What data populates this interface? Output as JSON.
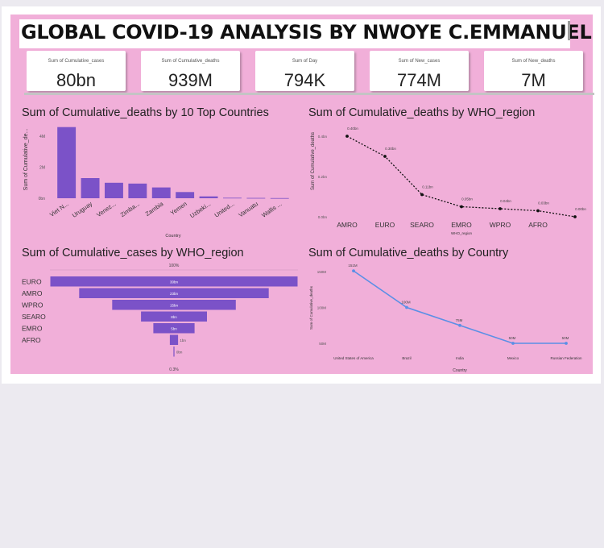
{
  "page": {
    "title": "GLOBAL COVID-19 ANALYSIS BY NWOYE C.EMMANUEL"
  },
  "kpis": [
    {
      "label": "Sum of Cumulative_cases",
      "value": "80bn"
    },
    {
      "label": "Sum of Cumulative_deaths",
      "value": "939M"
    },
    {
      "label": "Sum of Day",
      "value": "794K"
    },
    {
      "label": "Sum of New_cases",
      "value": "774M"
    },
    {
      "label": "Sum of New_deaths",
      "value": "7M"
    }
  ],
  "colors": {
    "canvas": "#f1afd9",
    "bar": "#7b52c8",
    "line_black": "#111111",
    "line_blue": "#5b8fe6"
  },
  "chart_data": [
    {
      "type": "bar",
      "title": "Sum of Cumulative_deaths by 10 Top Countries",
      "xlabel": "Country",
      "ylabel": "Sum of Cumulative_de...",
      "categories": [
        "Viet N...",
        "Uruguay",
        "Venez...",
        "Zimba...",
        "Zambia",
        "Yemen",
        "Uzbeki...",
        "United...",
        "Vanuatu",
        "Wallis ..."
      ],
      "values": [
        4.6,
        1.3,
        1.0,
        0.95,
        0.7,
        0.4,
        0.12,
        0.03,
        0.02,
        0.01
      ],
      "y_ticks": [
        "0bn",
        "2M",
        "4M"
      ],
      "ylim": [
        0,
        5
      ]
    },
    {
      "type": "line",
      "title": "Sum of Cumulative_deaths by WHO_region",
      "xlabel": "WHO_region",
      "ylabel": "Sum of Cumulative_deaths",
      "categories": [
        "AMRO",
        "EURO",
        "SEARO",
        "EMRO",
        "WPRO",
        "AFRO",
        ""
      ],
      "values": [
        0.4,
        0.3,
        0.11,
        0.05,
        0.04,
        0.03,
        0.0
      ],
      "data_labels": [
        "0.40bn",
        "0.30bn",
        "0.11bn",
        "0.05bn",
        "0.04bn",
        "0.03bn",
        "0.00bn"
      ],
      "y_ticks": [
        "0.0bn",
        "0.2bn",
        "0.4bn"
      ],
      "ylim": [
        0,
        0.5
      ]
    },
    {
      "type": "bar",
      "subtype": "funnel",
      "title": "Sum of Cumulative_cases by WHO_region",
      "top_label": "100%",
      "bottom_label": "0.3%",
      "categories": [
        "EURO",
        "AMRO",
        "WPRO",
        "SEARO",
        "EMRO",
        "AFRO",
        ""
      ],
      "values": [
        30,
        23,
        15,
        8,
        5,
        1,
        0.1
      ],
      "data_labels": [
        "30bn",
        "23bn",
        "15bn",
        "8bn",
        "5bn",
        "1bn",
        "0bn"
      ]
    },
    {
      "type": "line",
      "title": "Sum of Cumulative_deaths by Country",
      "xlabel": "Country",
      "ylabel": "Sum of Cumulative_deaths",
      "categories": [
        "United States of America",
        "Brazil",
        "India",
        "Mexico",
        "Russian Federation"
      ],
      "values": [
        151,
        100,
        75,
        50,
        50
      ],
      "data_labels": [
        "151M",
        "100M",
        "75M",
        "50M",
        "50M"
      ],
      "y_ticks": [
        "50M",
        "100M",
        "150M"
      ],
      "ylim": [
        50,
        150
      ]
    }
  ]
}
